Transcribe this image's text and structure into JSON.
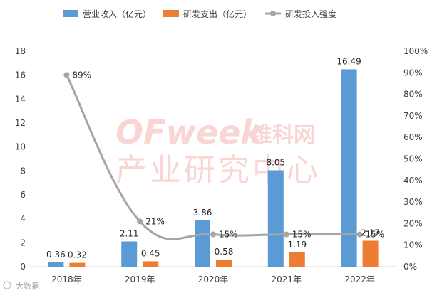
{
  "chart_data": {
    "type": "bar",
    "categories": [
      "2018年",
      "2019年",
      "2020年",
      "2021年",
      "2022年"
    ],
    "series": [
      {
        "name": "营业收入（亿元）",
        "kind": "bar",
        "axis": "left",
        "color": "#5B9BD5",
        "values": [
          0.36,
          2.11,
          3.86,
          8.05,
          16.49
        ],
        "labels": [
          "0.36",
          "2.11",
          "3.86",
          "8.05",
          "16.49"
        ]
      },
      {
        "name": "研发支出（亿元）",
        "kind": "bar",
        "axis": "left",
        "color": "#ED7D31",
        "values": [
          0.32,
          0.45,
          0.58,
          1.19,
          2.17
        ],
        "labels": [
          "0.32",
          "0.45",
          "0.58",
          "1.19",
          "2.17"
        ]
      },
      {
        "name": "研发投入强度",
        "kind": "line",
        "axis": "right",
        "color": "#A5A5A5",
        "values": [
          89,
          21,
          15,
          15,
          15
        ],
        "labels": [
          "89%",
          "21%",
          "15%",
          "15%",
          "15%"
        ]
      }
    ],
    "y_left": {
      "min": 0,
      "max": 18,
      "ticks": [
        "0",
        "2",
        "4",
        "6",
        "8",
        "10",
        "12",
        "14",
        "16",
        "18"
      ]
    },
    "y_right": {
      "min": 0,
      "max": 100,
      "ticks": [
        "0%",
        "10%",
        "20%",
        "30%",
        "40%",
        "50%",
        "60%",
        "70%",
        "80%",
        "90%",
        "100%"
      ]
    },
    "legend_position": "top",
    "grid": false
  },
  "watermark": {
    "brand_latin": "OFweek",
    "brand_cn": "维科网",
    "subtitle": "产业研究中心"
  },
  "footer": {
    "source_text": "大数据"
  }
}
